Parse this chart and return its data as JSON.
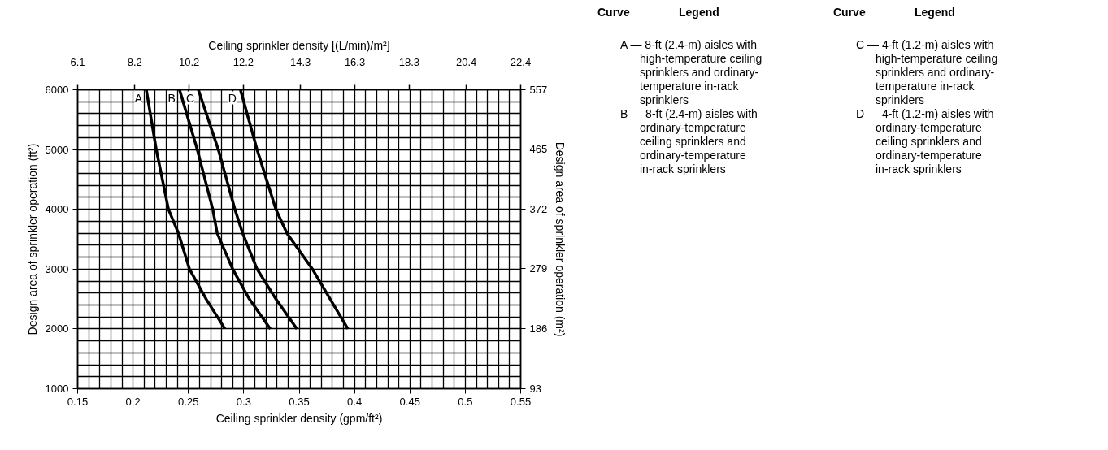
{
  "chart_data": {
    "type": "line",
    "xlabel": "Ceiling sprinkler density (gpm/ft²)",
    "ylabel": "Design area of sprinkler operation (ft²)",
    "x2label": "Ceiling sprinkler density [(L/min)/m²]",
    "y2label": "Design area of sprinkler operation (m²)",
    "xlim": [
      0.15,
      0.55
    ],
    "xticks": [
      0.15,
      0.2,
      0.25,
      0.3,
      0.35,
      0.4,
      0.45,
      0.5,
      0.55
    ],
    "ylim": [
      1000,
      6000
    ],
    "yticks": [
      1000,
      2000,
      3000,
      4000,
      5000,
      6000
    ],
    "x2lim": [
      6.1,
      22.4
    ],
    "x2ticks": [
      6.1,
      8.2,
      10.2,
      12.2,
      14.3,
      16.3,
      18.3,
      20.4,
      22.4
    ],
    "y2lim": [
      93,
      557
    ],
    "y2ticks": [
      93,
      186,
      279,
      372,
      465,
      557
    ],
    "grid": true,
    "marker": "none",
    "line_style": "solid",
    "legend": false,
    "series": [
      {
        "name": "A",
        "color": "#000000",
        "x": [
          0.212,
          0.221,
          0.232,
          0.241,
          0.251,
          0.266,
          0.283
        ],
        "values": [
          6000,
          5000,
          4000,
          3600,
          3000,
          2500,
          2000
        ]
      },
      {
        "name": "B",
        "color": "#000000",
        "x": [
          0.242,
          0.258,
          0.272,
          0.276,
          0.29,
          0.305,
          0.324
        ],
        "values": [
          6000,
          5000,
          4000,
          3600,
          3000,
          2500,
          2000
        ]
      },
      {
        "name": "C",
        "color": "#000000",
        "x": [
          0.259,
          0.277,
          0.292,
          0.299,
          0.312,
          0.329,
          0.348
        ],
        "values": [
          6000,
          5000,
          4000,
          3600,
          3000,
          2500,
          2000
        ]
      },
      {
        "name": "D",
        "color": "#000000",
        "x": [
          0.297,
          0.312,
          0.329,
          0.339,
          0.362,
          0.378,
          0.394
        ],
        "values": [
          6000,
          5000,
          4000,
          3600,
          3000,
          2500,
          2000
        ]
      }
    ],
    "annotations": [
      "Curve",
      "Legend",
      "Curve",
      "Legend",
      "A — 8-ft (2.4-m) aisles with\nhigh-temperature ceiling\nsprinklers and ordinary-\ntemperature in-rack\nsprinklers",
      "B — 8-ft (2.4-m) aisles with\nordinary-temperature\nceiling sprinklers and\nordinary-temperature\nin-rack sprinklers",
      "C — 4-ft (1.2-m) aisles with\nhigh-temperature ceiling\nsprinklers and ordinary-\ntemperature in-rack\nsprinklers",
      "D — 4-ft (1.2-m) aisles with\nordinary-temperature\nceiling sprinklers and\nordinary-temperature\nin-rack sprinklers"
    ]
  }
}
